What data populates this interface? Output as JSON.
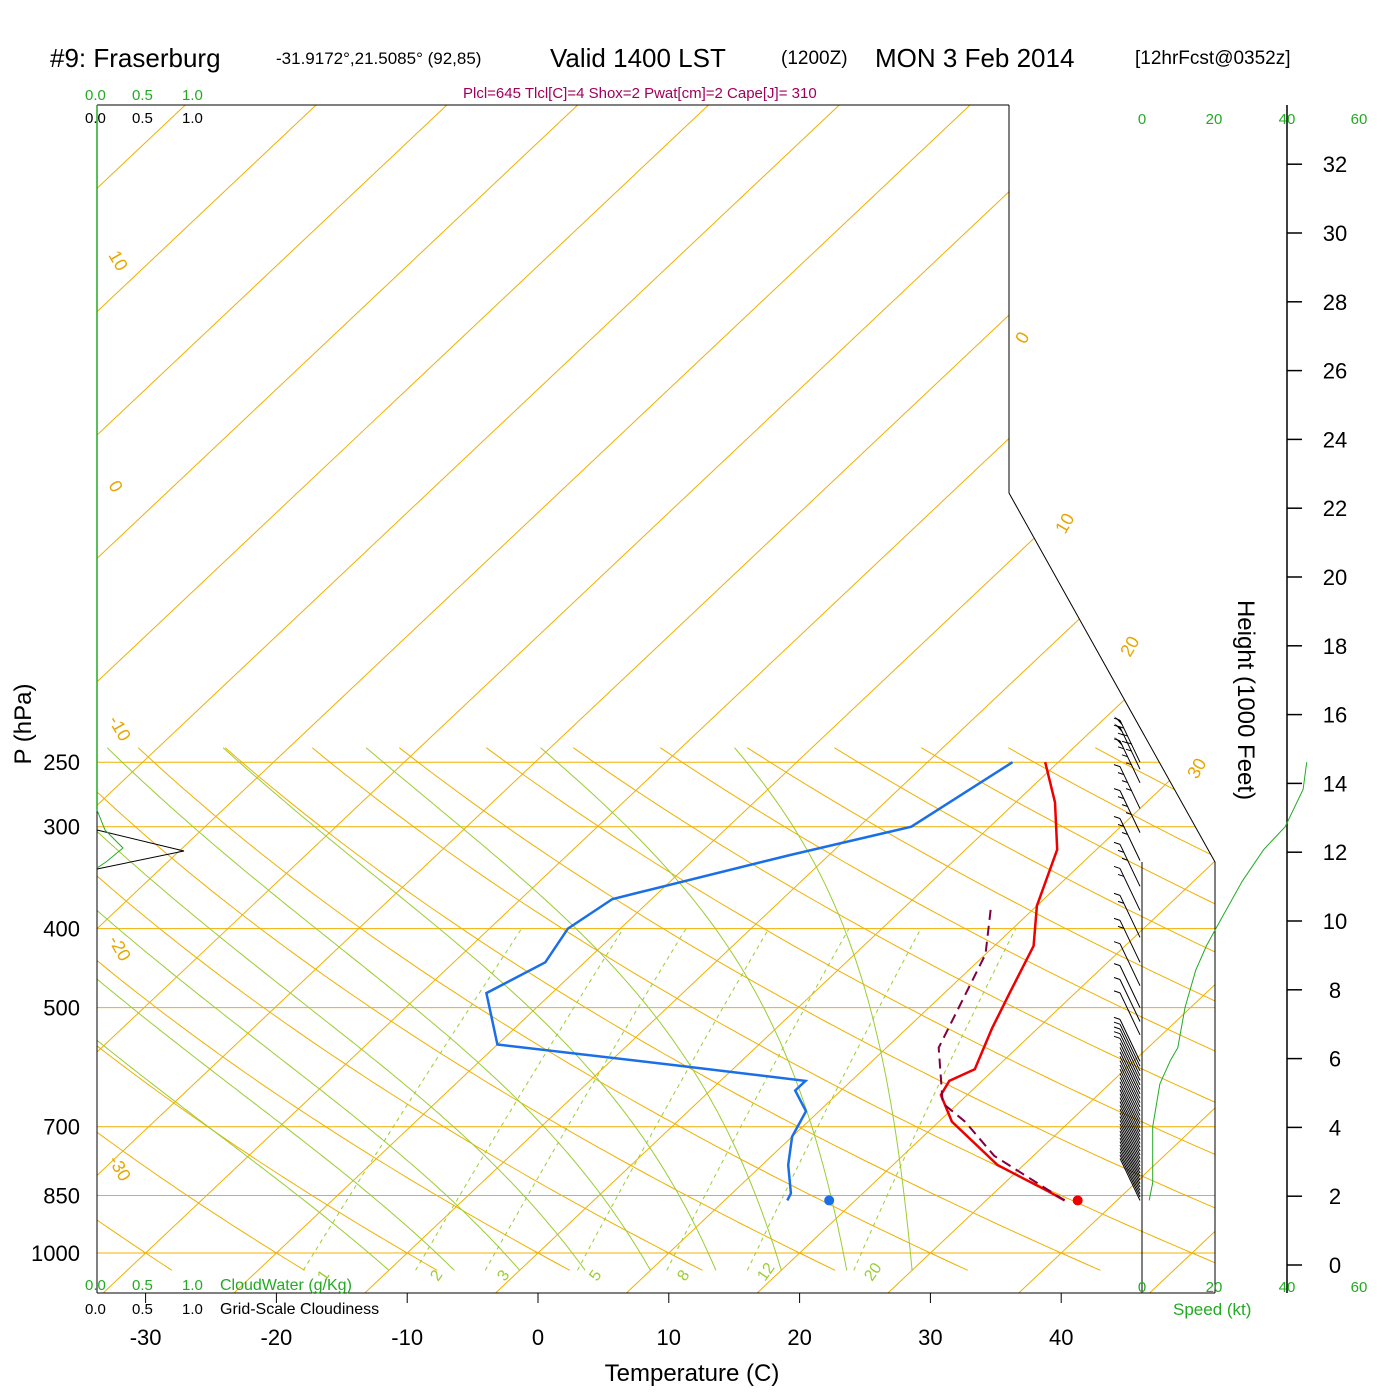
{
  "title": {
    "station": "#9: Fraserburg",
    "coords": "-31.9172°,21.5085° (92,85)",
    "valid": "Valid 1400 LST",
    "zulu": "(1200Z)",
    "date": "MON 3 Feb 2014",
    "forecast": "[12hrFcst@0352z]"
  },
  "indices": "Plcl=645 Tlcl[C]=4 Shox=2 Pwat[cm]=2 Cape[J]= 310",
  "chart_data": {
    "type": "line",
    "subtype": "skew-T log-P sounding",
    "xlabel": "Temperature (C)",
    "ylabel": "P (hPa)",
    "right_label": "Height (1000 Feet)",
    "pressure_ticks": [
      250,
      300,
      400,
      500,
      700,
      850,
      1000
    ],
    "pressure_tick_labels": [
      "250",
      "300",
      "400",
      "500",
      "700",
      "850",
      "1000"
    ],
    "temperature_ticks": [
      -30,
      -20,
      -10,
      0,
      10,
      20,
      30,
      40
    ],
    "temperature_tick_labels": [
      "-30",
      "-20",
      "-10",
      "0",
      "10",
      "20",
      "30",
      "40"
    ],
    "height_ticks": [
      0,
      2,
      4,
      6,
      8,
      10,
      12,
      14,
      16,
      18,
      20,
      22,
      24,
      26,
      28,
      30,
      32
    ],
    "height_tick_labels": [
      "0",
      "2",
      "4",
      "6",
      "8",
      "10",
      "12",
      "14",
      "16",
      "18",
      "20",
      "22",
      "24",
      "26",
      "28",
      "30",
      "32"
    ],
    "isotherm_labels": [
      "10",
      "0",
      "-10",
      "-20",
      "-30",
      "0",
      "10",
      "20",
      "30"
    ],
    "mixing_ratio_labels": [
      "1",
      "2",
      "3",
      "5",
      "8",
      "12",
      "20"
    ],
    "series": [
      {
        "role": "temperature",
        "color": "#ee0000",
        "points": [
          [
            36,
            862
          ],
          [
            34,
            840
          ],
          [
            28,
            780
          ],
          [
            21,
            690
          ],
          [
            18,
            640
          ],
          [
            17.5,
            615
          ],
          [
            18.5,
            595
          ],
          [
            16.5,
            530
          ],
          [
            15,
            480
          ],
          [
            13,
            420
          ],
          [
            10,
            375
          ],
          [
            7,
            320
          ],
          [
            3,
            280
          ],
          [
            -1,
            250
          ]
        ]
      },
      {
        "role": "dewpoint",
        "color": "#1a6fe8",
        "points": [
          [
            14.8,
            862
          ],
          [
            14.5,
            845
          ],
          [
            12,
            780
          ],
          [
            10,
            720
          ],
          [
            9,
            670
          ],
          [
            6.5,
            632
          ],
          [
            6.5,
            615
          ],
          [
            -4,
            590
          ],
          [
            -20,
            555
          ],
          [
            -25,
            480
          ],
          [
            -23,
            440
          ],
          [
            -24,
            400
          ],
          [
            -23,
            368
          ],
          [
            -13,
            325
          ],
          [
            -6,
            300
          ],
          [
            -3.5,
            250
          ]
        ]
      },
      {
        "role": "parcel",
        "color": "#800040",
        "style": "dashed",
        "points": [
          [
            36,
            862
          ],
          [
            27,
            760
          ],
          [
            22,
            690
          ],
          [
            18.8,
            655
          ],
          [
            14,
            560
          ],
          [
            10,
            430
          ],
          [
            6.5,
            375
          ]
        ]
      }
    ],
    "surface_temperature_marker": 37,
    "surface_dewpoint_marker": 18,
    "surface_pressure": 862,
    "wind_profile_color": "#22aa22",
    "wind_speed_label": "Speed (kt)",
    "wind_speed_ticks": [
      "0",
      "20",
      "40",
      "60"
    ],
    "wind_speed_profile_kt": [
      [
        862,
        2
      ],
      [
        820,
        3
      ],
      [
        700,
        3
      ],
      [
        620,
        5
      ],
      [
        580,
        8
      ],
      [
        560,
        10
      ],
      [
        500,
        12
      ],
      [
        450,
        15
      ],
      [
        420,
        18
      ],
      [
        390,
        22
      ],
      [
        350,
        28
      ],
      [
        320,
        34
      ],
      [
        300,
        40
      ],
      [
        270,
        45
      ],
      [
        250,
        46
      ]
    ],
    "cloud_panel": {
      "water_ticks": [
        "0.0",
        "0.5",
        "1.0"
      ],
      "cloudiness_ticks": [
        "0.0",
        "0.5",
        "1.0"
      ],
      "water_label": "CloudWater (g/Kg)",
      "cloudiness_label": "Grid-Scale Cloudiness"
    }
  }
}
